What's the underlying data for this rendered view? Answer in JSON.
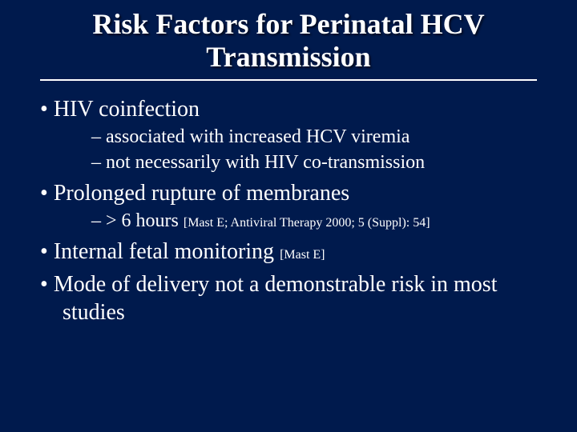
{
  "background_color": "#001a4d",
  "text_color": "#ffffff",
  "title_fontsize": 36,
  "level1_fontsize": 28,
  "level2_fontsize": 24,
  "cite_fontsize": 16,
  "font_family": "Times New Roman",
  "title": "Risk Factors for Perinatal HCV Transmission",
  "bullets": {
    "b1": "HIV coinfection",
    "b1s1": "associated with increased HCV viremia",
    "b1s2": "not necessarily with HIV co-transmission",
    "b2": "Prolonged rupture of membranes",
    "b2s1_pre": "> 6 hours ",
    "b2s1_cite": "[Mast E; Antiviral Therapy 2000; 5 (Suppl): 54]",
    "b3_text": "Internal fetal monitoring ",
    "b3_cite": "[Mast E]",
    "b4": "Mode of delivery not a demonstrable risk in most studies"
  }
}
